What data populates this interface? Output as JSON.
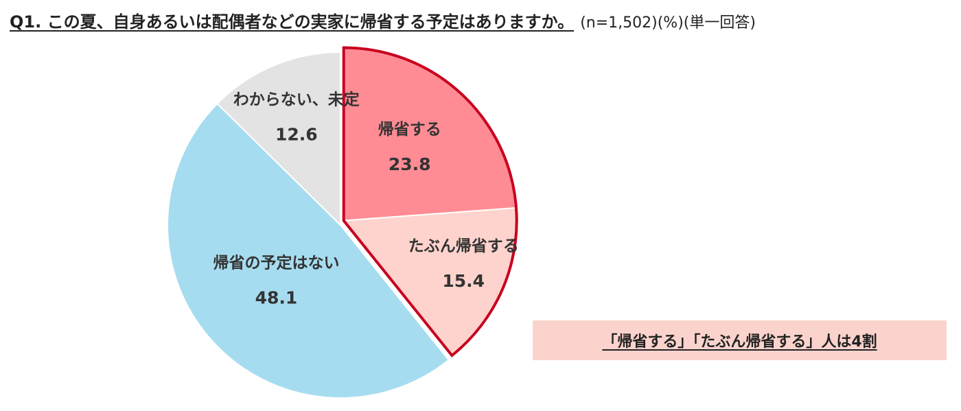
{
  "header": {
    "title": "Q1. この夏、自身あるいは配偶者などの実家に帰省する予定はありますか。",
    "note": "(n=1,502)(%)(単一回答)"
  },
  "callout": {
    "text": "「帰省する」「たぶん帰省する」人は4割",
    "color": "#fbd3cd"
  },
  "chart_data": {
    "type": "pie",
    "title": "Q1. この夏、自身あるいは配偶者などの実家に帰省する予定はありますか。",
    "unit": "%",
    "start": "12 o'clock, clockwise",
    "slices": [
      {
        "label": "帰省する",
        "value": 23.8,
        "color": "#ff8c94",
        "highlight": true
      },
      {
        "label": "たぶん帰省する",
        "value": 15.4,
        "color": "#ffd3cd",
        "highlight": true
      },
      {
        "label": "帰省の予定はない",
        "value": 48.1,
        "color": "#a6dcf0",
        "highlight": false
      },
      {
        "label": "わからない、未定",
        "value": 12.6,
        "color": "#e3e3e3",
        "highlight": false
      }
    ],
    "highlight_border_color": "#c8001e"
  }
}
